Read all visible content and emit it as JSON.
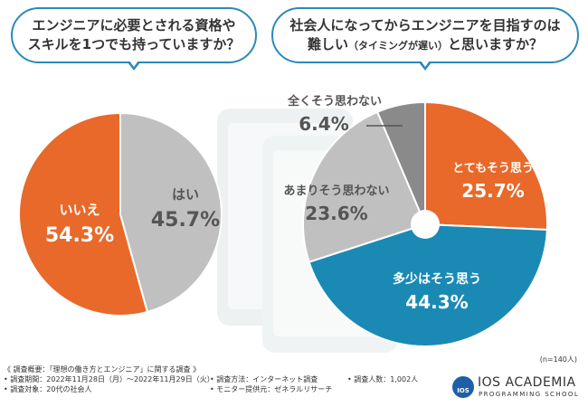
{
  "questions": {
    "q1": {
      "line1": "エンジニアに必要とされる資格や",
      "line2": "スキルを1つでも持っていますか？"
    },
    "q2": {
      "line1": "社会人になってからエンジニアを目指すのは",
      "line2a": "難しい",
      "line2b": "（タイミングが遅い）",
      "line2c": "と思いますか？"
    }
  },
  "colors": {
    "orange": "#e8692a",
    "gray": "#c0c0c0",
    "blue": "#1a8ab5",
    "darkgray": "#8a8a8a",
    "frame": "#2a8ab8"
  },
  "chart_data": [
    {
      "type": "pie",
      "slices": [
        {
          "label": "はい",
          "value": 45.7,
          "text": "45.7%"
        },
        {
          "label": "いいえ",
          "value": 54.3,
          "text": "54.3%"
        }
      ]
    },
    {
      "type": "pie",
      "donut": true,
      "slices": [
        {
          "label": "とてもそう思う",
          "value": 25.7,
          "text": "25.7%"
        },
        {
          "label": "多少はそう思う",
          "value": 44.3,
          "text": "44.3%"
        },
        {
          "label": "あまりそう思わない",
          "value": 23.6,
          "text": "23.6%"
        },
        {
          "label": "全くそう思わない",
          "value": 6.4,
          "text": "6.4%"
        }
      ]
    }
  ],
  "sample": "(n=140人)",
  "survey": {
    "heading": "《 調査概要：「理想の働き方とエンジニア」に関する調査 》",
    "period": "• 調査期間：2022年11月28日（月）〜2022年11月29日（火）",
    "method": "• 調査方法：インターネット調査",
    "count": "• 調査人数：1,002人",
    "target": "• 調査対象：20代の社会人",
    "provider": "• モニター提供元：ゼネラルリサーチ"
  },
  "brand": {
    "logo": "IOS",
    "name": "IOS ACADEMIA",
    "sub": "PROGRAMMING SCHOOL"
  }
}
